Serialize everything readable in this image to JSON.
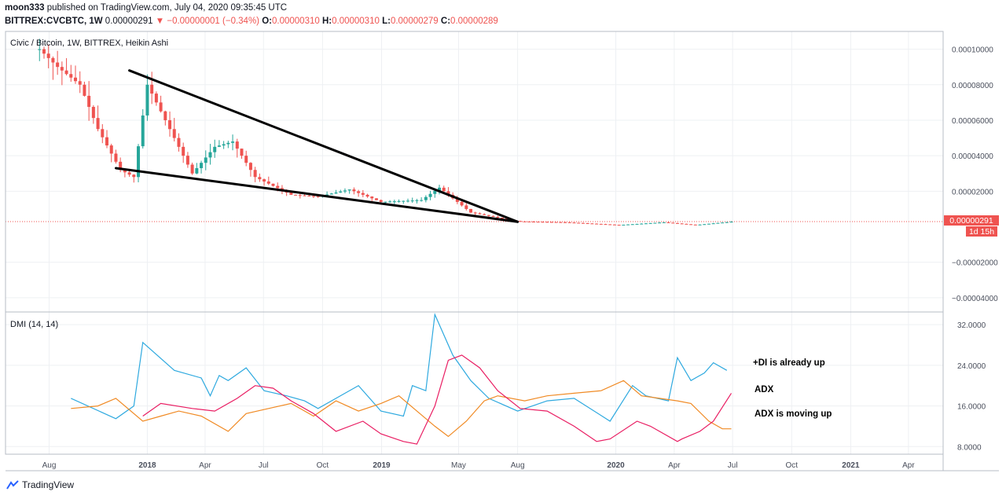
{
  "header": {
    "author": "moon333",
    "published_text": " published on TradingView.com, July 04, 2020 09:35:45 UTC",
    "symbol": "BITTREX:CVCBTC, 1W",
    "last": "0.00000291",
    "change": "−0.00000001 (−0.34%)",
    "o_label": "O:",
    "o_val": "0.00000310",
    "h_label": "H:",
    "h_val": "0.00000310",
    "l_label": "L:",
    "l_val": "0.00000279",
    "c_label": "C:",
    "c_val": "0.00000289"
  },
  "main_pane": {
    "title": "Civic / Bitcoin, 1W, BITTREX, Heikin Ashi",
    "price_tag": "0.00000291",
    "countdown_tag": "1d 15h"
  },
  "dmi_pane": {
    "title": "DMI (14, 14)",
    "notes": [
      "+DI is already up",
      "ADX",
      "ADX is moving up"
    ]
  },
  "footer": {
    "brand": "TradingView"
  },
  "colors": {
    "plus_di": "#2ea9df",
    "minus_di": "#f08a24",
    "adx": "#e91e63",
    "candle_up": "#26a69a",
    "candle_down": "#ef5350",
    "trendline": "#000000"
  },
  "chart_data": [
    {
      "type": "candlestick",
      "title": "Civic / Bitcoin, 1W, BITTREX, Heikin Ashi",
      "ylim": [
        -4.8e-05,
        0.00011
      ],
      "y_ticks": [
        "0.00010000",
        "0.00008000",
        "0.00006000",
        "0.00004000",
        "0.00002000",
        "−0.00002000",
        "−0.00004000"
      ],
      "y_tick_values": [
        0.0001,
        8e-05,
        6e-05,
        4e-05,
        2e-05,
        -2e-05,
        -4e-05
      ],
      "x_ticks": [
        "Aug",
        "2018",
        "Apr",
        "Jul",
        "Oct",
        "2019",
        "May",
        "Aug",
        "2020",
        "Apr",
        "Jul",
        "Oct",
        "2021",
        "Apr"
      ],
      "x_tick_dates": [
        "2017-08-01",
        "2018-01-01",
        "2018-04-01",
        "2018-07-01",
        "2018-10-01",
        "2019-01-01",
        "2019-05-01",
        "2019-08-01",
        "2020-01-01",
        "2020-04-01",
        "2020-07-01",
        "2020-10-01",
        "2021-01-01",
        "2021-04-01"
      ],
      "x_range": [
        "2017-05-25",
        "2021-05-25"
      ],
      "price_anchors": [
        [
          "2017-07-17",
          0.0001
        ],
        [
          "2017-08-14",
          9e-05
        ],
        [
          "2017-09-18",
          8e-05
        ],
        [
          "2017-10-16",
          5.5e-05
        ],
        [
          "2017-11-20",
          3.2e-05
        ],
        [
          "2017-12-11",
          2.8e-05
        ],
        [
          "2018-01-01",
          8e-05
        ],
        [
          "2018-02-05",
          5.5e-05
        ],
        [
          "2018-03-12",
          3e-05
        ],
        [
          "2018-04-16",
          4.5e-05
        ],
        [
          "2018-05-14",
          4.8e-05
        ],
        [
          "2018-06-18",
          2.8e-05
        ],
        [
          "2018-08-13",
          1.8e-05
        ],
        [
          "2018-09-24",
          1.7e-05
        ],
        [
          "2018-11-12",
          2.1e-05
        ],
        [
          "2018-12-31",
          1.4e-05
        ],
        [
          "2019-03-04",
          1.5e-05
        ],
        [
          "2019-04-01",
          2.2e-05
        ],
        [
          "2019-05-20",
          8e-06
        ],
        [
          "2019-08-01",
          3e-06
        ],
        [
          "2019-10-14",
          2.5e-06
        ],
        [
          "2020-01-06",
          1e-06
        ],
        [
          "2020-03-16",
          2.5e-06
        ],
        [
          "2020-05-04",
          1e-06
        ],
        [
          "2020-07-01",
          2.9e-06
        ]
      ],
      "last_price": 2.91e-06,
      "trendlines": [
        {
          "from": [
            "2017-12-04",
            8.8e-05
          ],
          "to": [
            "2019-08-01",
            2.8e-06
          ]
        },
        {
          "from": [
            "2017-11-13",
            3.3e-05
          ],
          "to": [
            "2019-08-01",
            2.8e-06
          ]
        }
      ]
    },
    {
      "type": "line",
      "title": "DMI (14, 14)",
      "ylim": [
        6.5,
        34.5
      ],
      "y_ticks": [
        "32.0000",
        "24.0000",
        "16.0000",
        "8.0000"
      ],
      "y_tick_values": [
        32,
        24,
        16,
        8
      ],
      "series": [
        {
          "name": "+DI",
          "color": "#2ea9df",
          "points": [
            [
              "2017-09-04",
              17.5
            ],
            [
              "2017-11-13",
              13.5
            ],
            [
              "2017-12-11",
              16
            ],
            [
              "2017-12-25",
              28.5
            ],
            [
              "2018-02-12",
              23
            ],
            [
              "2018-03-26",
              21.5
            ],
            [
              "2018-04-09",
              18
            ],
            [
              "2018-04-23",
              22
            ],
            [
              "2018-05-07",
              21
            ],
            [
              "2018-06-04",
              23.5
            ],
            [
              "2018-07-02",
              19
            ],
            [
              "2018-08-06",
              18
            ],
            [
              "2018-09-03",
              17
            ],
            [
              "2018-09-24",
              15.5
            ],
            [
              "2018-11-05",
              18.5
            ],
            [
              "2018-11-26",
              20
            ],
            [
              "2018-12-31",
              15
            ],
            [
              "2019-02-04",
              14
            ],
            [
              "2019-02-18",
              20
            ],
            [
              "2019-03-11",
              19
            ],
            [
              "2019-03-25",
              34
            ],
            [
              "2019-04-22",
              26
            ],
            [
              "2019-05-20",
              21
            ],
            [
              "2019-06-17",
              17.5
            ],
            [
              "2019-08-01",
              15
            ],
            [
              "2019-09-16",
              17
            ],
            [
              "2019-10-28",
              17.5
            ],
            [
              "2019-12-23",
              13
            ],
            [
              "2020-01-27",
              20
            ],
            [
              "2020-02-17",
              18
            ],
            [
              "2020-03-23",
              17
            ],
            [
              "2020-04-06",
              25.5
            ],
            [
              "2020-04-27",
              21
            ],
            [
              "2020-05-18",
              22.5
            ],
            [
              "2020-06-01",
              24.5
            ],
            [
              "2020-06-22",
              23
            ]
          ]
        },
        {
          "name": "-DI",
          "color": "#f08a24",
          "points": [
            [
              "2017-09-04",
              15.5
            ],
            [
              "2017-10-16",
              16
            ],
            [
              "2017-11-13",
              17.5
            ],
            [
              "2017-12-25",
              13
            ],
            [
              "2018-01-22",
              14
            ],
            [
              "2018-02-19",
              15
            ],
            [
              "2018-03-26",
              14
            ],
            [
              "2018-05-07",
              11
            ],
            [
              "2018-06-04",
              14.5
            ],
            [
              "2018-07-09",
              15.5
            ],
            [
              "2018-08-13",
              16.5
            ],
            [
              "2018-09-17",
              14
            ],
            [
              "2018-10-22",
              17
            ],
            [
              "2018-11-26",
              15
            ],
            [
              "2018-12-31",
              16.5
            ],
            [
              "2019-01-28",
              18
            ],
            [
              "2019-02-25",
              15
            ],
            [
              "2019-03-25",
              12
            ],
            [
              "2019-04-15",
              10
            ],
            [
              "2019-05-13",
              13
            ],
            [
              "2019-06-10",
              17
            ],
            [
              "2019-07-01",
              18
            ],
            [
              "2019-08-12",
              17
            ],
            [
              "2019-09-16",
              18
            ],
            [
              "2019-10-28",
              18.5
            ],
            [
              "2019-12-09",
              19
            ],
            [
              "2020-01-13",
              21
            ],
            [
              "2020-02-10",
              18
            ],
            [
              "2020-03-09",
              17.5
            ],
            [
              "2020-04-06",
              17
            ],
            [
              "2020-04-27",
              16.5
            ],
            [
              "2020-05-25",
              13
            ],
            [
              "2020-06-15",
              11.5
            ],
            [
              "2020-06-29",
              11.5
            ]
          ]
        },
        {
          "name": "ADX",
          "color": "#e91e63",
          "points": [
            [
              "2017-12-25",
              14
            ],
            [
              "2018-01-22",
              16.5
            ],
            [
              "2018-03-12",
              15.5
            ],
            [
              "2018-04-16",
              15
            ],
            [
              "2018-05-21",
              17.5
            ],
            [
              "2018-06-18",
              20
            ],
            [
              "2018-07-16",
              19.5
            ],
            [
              "2018-08-13",
              17
            ],
            [
              "2018-09-17",
              14.5
            ],
            [
              "2018-10-22",
              11
            ],
            [
              "2018-12-03",
              13
            ],
            [
              "2018-12-31",
              10.5
            ],
            [
              "2019-02-04",
              9
            ],
            [
              "2019-02-25",
              8.5
            ],
            [
              "2019-03-25",
              16
            ],
            [
              "2019-04-15",
              25
            ],
            [
              "2019-05-06",
              26
            ],
            [
              "2019-06-03",
              23.5
            ],
            [
              "2019-07-01",
              19
            ],
            [
              "2019-08-05",
              15.5
            ],
            [
              "2019-09-16",
              15
            ],
            [
              "2019-10-28",
              12
            ],
            [
              "2019-12-02",
              9
            ],
            [
              "2019-12-23",
              9.5
            ],
            [
              "2020-02-03",
              13
            ],
            [
              "2020-02-24",
              12
            ],
            [
              "2020-04-06",
              9
            ],
            [
              "2020-04-13",
              9.5
            ],
            [
              "2020-05-11",
              11
            ],
            [
              "2020-06-01",
              13
            ],
            [
              "2020-06-29",
              18.5
            ]
          ]
        }
      ]
    }
  ]
}
